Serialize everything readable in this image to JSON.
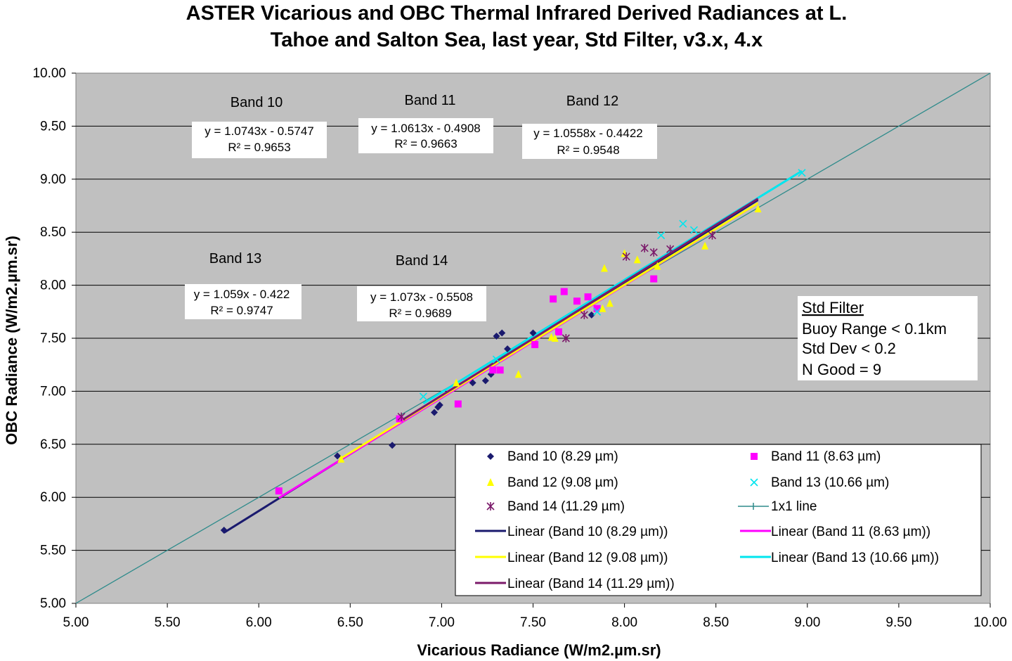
{
  "chart_data": {
    "type": "scatter",
    "title_lines": [
      "ASTER Vicarious and OBC Thermal Infrared Derived Radiances at L.",
      "Tahoe and Salton Sea, last year, Std Filter, v3.x, 4.x"
    ],
    "xlabel": "Vicarious Radiance (W/m2.µm.sr)",
    "ylabel": "OBC Radiance (W/m2.µm.sr)",
    "xlim": [
      5.0,
      10.0
    ],
    "ylim": [
      5.0,
      10.0
    ],
    "xticks": [
      "5.00",
      "5.50",
      "6.00",
      "6.50",
      "7.00",
      "7.50",
      "8.00",
      "8.50",
      "9.00",
      "9.50",
      "10.00"
    ],
    "yticks": [
      "5.00",
      "5.50",
      "6.00",
      "6.50",
      "7.00",
      "7.50",
      "8.00",
      "8.50",
      "9.00",
      "9.50",
      "10.00"
    ],
    "plot_background": "#c0c0c0",
    "grid": "horizontal",
    "series": [
      {
        "name": "Band 10  (8.29 µm)",
        "marker": "diamond",
        "color": "#1a1a6e",
        "points": [
          [
            5.81,
            5.69
          ],
          [
            6.43,
            6.39
          ],
          [
            6.73,
            6.49
          ],
          [
            6.96,
            6.8
          ],
          [
            6.98,
            6.85
          ],
          [
            6.99,
            6.87
          ],
          [
            7.17,
            7.08
          ],
          [
            7.24,
            7.1
          ],
          [
            7.27,
            7.16
          ],
          [
            7.3,
            7.52
          ],
          [
            7.33,
            7.55
          ],
          [
            7.36,
            7.4
          ],
          [
            7.5,
            7.55
          ],
          [
            7.82,
            7.72
          ]
        ],
        "fit": {
          "slope": 1.0743,
          "intercept": -0.5747,
          "x_range": [
            5.81,
            8.73
          ],
          "label": "Linear (Band 10  (8.29 µm))"
        }
      },
      {
        "name": "Band 11 (8.63 µm)",
        "marker": "square",
        "color": "#ff00ff",
        "points": [
          [
            6.11,
            6.06
          ],
          [
            6.77,
            6.74
          ],
          [
            7.09,
            6.88
          ],
          [
            7.28,
            7.2
          ],
          [
            7.32,
            7.2
          ],
          [
            7.51,
            7.44
          ],
          [
            7.61,
            7.87
          ],
          [
            7.64,
            7.56
          ],
          [
            7.67,
            7.94
          ],
          [
            7.74,
            7.85
          ],
          [
            7.8,
            7.89
          ],
          [
            7.85,
            7.78
          ],
          [
            8.16,
            8.06
          ]
        ],
        "fit": {
          "slope": 1.0613,
          "intercept": -0.4908,
          "x_range": [
            6.11,
            8.73
          ],
          "label": "Linear (Band 11 (8.63 µm))"
        }
      },
      {
        "name": "Band 12 (9.08 µm)",
        "marker": "triangle",
        "color": "#ffff00",
        "points": [
          [
            6.45,
            6.36
          ],
          [
            7.08,
            7.08
          ],
          [
            7.42,
            7.16
          ],
          [
            7.6,
            7.51
          ],
          [
            7.62,
            7.5
          ],
          [
            7.88,
            7.78
          ],
          [
            7.89,
            8.16
          ],
          [
            7.92,
            7.83
          ],
          [
            8.0,
            8.3
          ],
          [
            8.07,
            8.24
          ],
          [
            8.18,
            8.18
          ],
          [
            8.44,
            8.37
          ],
          [
            8.73,
            8.72
          ]
        ],
        "fit": {
          "slope": 1.0558,
          "intercept": -0.4422,
          "x_range": [
            6.45,
            8.73
          ],
          "label": "Linear (Band 12 (9.08 µm))"
        }
      },
      {
        "name": "Band 13 (10.66 µm)",
        "marker": "x",
        "color": "#00e5ee",
        "points": [
          [
            6.9,
            6.95
          ],
          [
            7.3,
            7.3
          ],
          [
            7.85,
            7.75
          ],
          [
            8.2,
            8.47
          ],
          [
            8.32,
            8.58
          ],
          [
            8.38,
            8.52
          ],
          [
            8.97,
            9.06
          ]
        ],
        "fit": {
          "slope": 1.059,
          "intercept": -0.422,
          "x_range": [
            6.9,
            8.97
          ],
          "label": "Linear (Band 13 (10.66 µm))"
        }
      },
      {
        "name": "Band 14 (11.29 µm)",
        "marker": "star",
        "color": "#7b1a6a",
        "points": [
          [
            6.78,
            6.76
          ],
          [
            7.68,
            7.5
          ],
          [
            7.78,
            7.72
          ],
          [
            8.01,
            8.27
          ],
          [
            8.11,
            8.35
          ],
          [
            8.16,
            8.31
          ],
          [
            8.25,
            8.34
          ],
          [
            8.48,
            8.47
          ]
        ],
        "fit": {
          "slope": 1.073,
          "intercept": -0.5508,
          "x_range": [
            6.78,
            8.73
          ],
          "label": "Linear (Band 14 (11.29 µm))"
        }
      }
    ],
    "reference_line": {
      "name": "1x1 line",
      "color": "#2e8b8b",
      "x": [
        5.0,
        10.0
      ],
      "y": [
        5.0,
        10.0
      ]
    },
    "annotations": [
      {
        "band": "Band 10",
        "equation": "y = 1.0743x - 0.5747",
        "r2": "R² = 0.9653"
      },
      {
        "band": "Band 11",
        "equation": "y = 1.0613x - 0.4908",
        "r2": "R² = 0.9663"
      },
      {
        "band": "Band 12",
        "equation": "y = 1.0558x - 0.4422",
        "r2": "R² = 0.9548"
      },
      {
        "band": "Band 13",
        "equation": "y = 1.059x - 0.422",
        "r2": "R² = 0.9747"
      },
      {
        "band": "Band 14",
        "equation": "y = 1.073x - 0.5508",
        "r2": "R² = 0.9689"
      }
    ],
    "filter_box": {
      "heading": "Std Filter",
      "lines": [
        "Buoy Range < 0.1km",
        "Std Dev < 0.2",
        "N Good = 9"
      ]
    }
  }
}
